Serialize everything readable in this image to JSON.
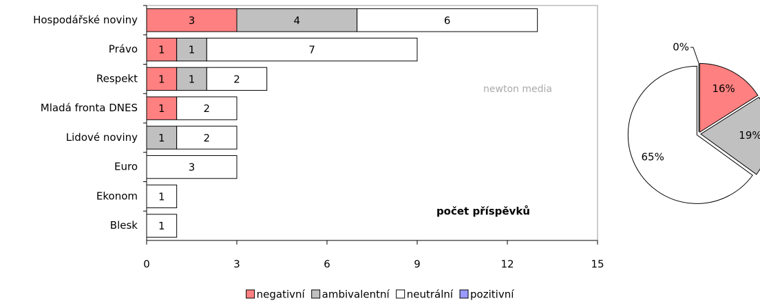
{
  "chart_data": [
    {
      "type": "stacked-barh",
      "categories": [
        "Hospodářské noviny",
        "Právo",
        "Respekt",
        "Mladá fronta DNES",
        "Lidové noviny",
        "Euro",
        "Ekonom",
        "Blesk"
      ],
      "series": [
        {
          "name": "negativní",
          "color": "#ff8080",
          "values": [
            3,
            1,
            1,
            1,
            0,
            0,
            0,
            0
          ]
        },
        {
          "name": "ambivalentní",
          "color": "#c0c0c0",
          "values": [
            4,
            1,
            1,
            0,
            1,
            0,
            0,
            0
          ]
        },
        {
          "name": "neutrální",
          "color": "#ffffff",
          "values": [
            6,
            7,
            2,
            2,
            2,
            3,
            1,
            1
          ]
        },
        {
          "name": "pozitivní",
          "color": "#9999ff",
          "values": [
            0,
            0,
            0,
            0,
            0,
            0,
            0,
            0
          ]
        }
      ],
      "xlim": [
        0,
        15
      ],
      "xticks": [
        0,
        3,
        6,
        9,
        12,
        15
      ],
      "annotation": "počet příspěvků",
      "watermark": "newton media",
      "legend": "bottom"
    },
    {
      "type": "pie",
      "categories": [
        "negativní",
        "ambivalentní",
        "neutrální",
        "pozitivní"
      ],
      "colors": [
        "#ff8080",
        "#c0c0c0",
        "#ffffff",
        "#9999ff"
      ],
      "values": [
        16,
        19,
        65,
        0
      ],
      "value_labels": [
        "16%",
        "19%",
        "65%",
        "0%"
      ]
    }
  ]
}
